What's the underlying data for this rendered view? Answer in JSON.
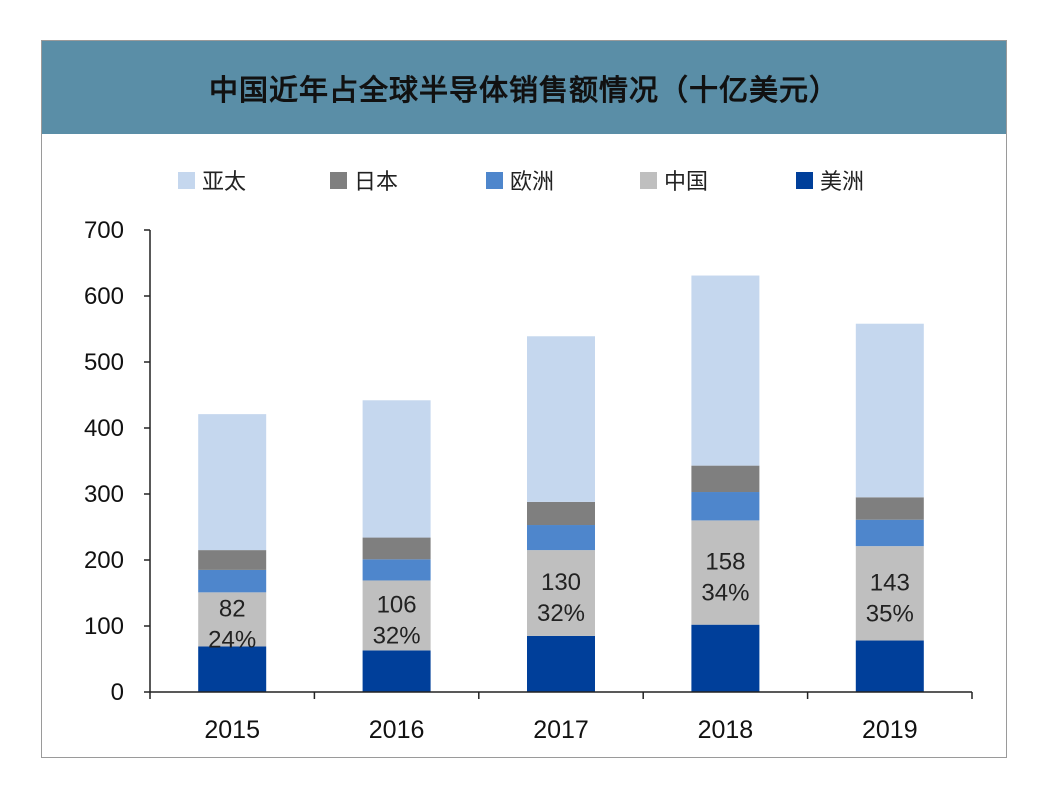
{
  "chart_data": {
    "type": "bar",
    "stacked": true,
    "title": "中国近年占全球半导体销售额情况（十亿美元）",
    "categories": [
      "2015",
      "2016",
      "2017",
      "2018",
      "2019"
    ],
    "ylim": [
      0,
      700
    ],
    "yticks": [
      0,
      100,
      200,
      300,
      400,
      500,
      600,
      700
    ],
    "legend_position": "top",
    "series": [
      {
        "name": "美洲",
        "color": "#003f9a",
        "values": [
          69,
          63,
          85,
          102,
          78
        ]
      },
      {
        "name": "中国",
        "color": "#bfbfbf",
        "values": [
          82,
          106,
          130,
          158,
          143
        ]
      },
      {
        "name": "欧洲",
        "color": "#4e86cc",
        "values": [
          34,
          32,
          38,
          43,
          40
        ]
      },
      {
        "name": "日本",
        "color": "#7f7f7f",
        "values": [
          30,
          33,
          35,
          40,
          34
        ]
      },
      {
        "name": "亚太",
        "color": "#c5d7ee",
        "values": [
          206,
          208,
          251,
          288,
          263
        ]
      }
    ],
    "legend_order": [
      "亚太",
      "日本",
      "欧洲",
      "中国",
      "美洲"
    ],
    "annotations": [
      {
        "category": "2015",
        "series": "中国",
        "value": "82",
        "share": "24%"
      },
      {
        "category": "2016",
        "series": "中国",
        "value": "106",
        "share": "32%"
      },
      {
        "category": "2017",
        "series": "中国",
        "value": "130",
        "share": "32%"
      },
      {
        "category": "2018",
        "series": "中国",
        "value": "158",
        "share": "34%"
      },
      {
        "category": "2019",
        "series": "中国",
        "value": "143",
        "share": "35%"
      }
    ]
  }
}
